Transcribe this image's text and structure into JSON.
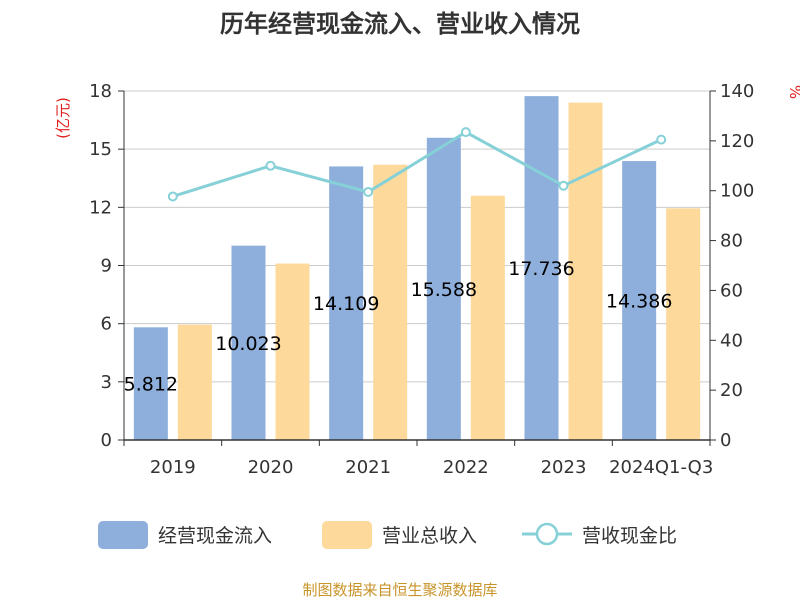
{
  "chart_data": {
    "type": "bar",
    "title": "历年经营现金流入、营业收入情况",
    "categories": [
      "2019",
      "2020",
      "2021",
      "2022",
      "2023",
      "2024Q1-Q3"
    ],
    "series": [
      {
        "name": "经营现金流入",
        "type": "bar",
        "axis": "left",
        "color": "#8eaedb",
        "values": [
          5.812,
          10.023,
          14.109,
          15.588,
          17.736,
          14.386
        ],
        "labels": [
          "5.812",
          "10.023",
          "14.109",
          "15.588",
          "17.736",
          "14.386"
        ]
      },
      {
        "name": "营业总收入",
        "type": "bar",
        "axis": "left",
        "color": "#fdd99b",
        "values": [
          5.95,
          9.1,
          14.2,
          12.6,
          17.4,
          11.95
        ]
      },
      {
        "name": "营收现金比",
        "type": "line",
        "axis": "right",
        "color": "#86d0d8",
        "values": [
          97.7,
          110.0,
          99.5,
          123.5,
          102.0,
          120.5
        ]
      }
    ],
    "ylabel_left": "(亿元)",
    "ylabel_right": "%",
    "ylim_left": [
      0,
      18
    ],
    "yticks_left": [
      "0",
      "3",
      "6",
      "9",
      "12",
      "15",
      "18"
    ],
    "ylim_right": [
      0,
      140
    ],
    "yticks_right": [
      "0",
      "20",
      "40",
      "60",
      "80",
      "100",
      "120",
      "140"
    ],
    "grid": true,
    "legend_position": "bottom"
  },
  "source": "制图数据来自恒生聚源数据库"
}
